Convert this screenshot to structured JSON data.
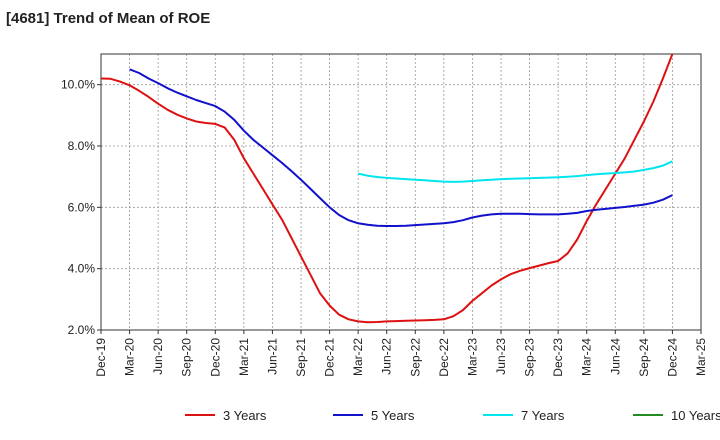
{
  "chart_data": {
    "type": "line",
    "title": "[4681]  Trend of Mean of ROE",
    "xlabel": "",
    "ylabel": "",
    "ylim": [
      2.0,
      11.0
    ],
    "grid": true,
    "legend_position": "bottom",
    "x_ticks": [
      "Dec-19",
      "Mar-20",
      "Jun-20",
      "Sep-20",
      "Dec-20",
      "Mar-21",
      "Jun-21",
      "Sep-21",
      "Dec-21",
      "Mar-22",
      "Jun-22",
      "Sep-22",
      "Dec-22",
      "Mar-23",
      "Jun-23",
      "Sep-23",
      "Dec-23",
      "Mar-24",
      "Jun-24",
      "Sep-24",
      "Dec-24",
      "Mar-25"
    ],
    "y_ticks": [
      {
        "value": 2.0,
        "label": "2.0%"
      },
      {
        "value": 4.0,
        "label": "4.0%"
      },
      {
        "value": 6.0,
        "label": "6.0%"
      },
      {
        "value": 8.0,
        "label": "8.0%"
      },
      {
        "value": 10.0,
        "label": "10.0%"
      }
    ],
    "series": [
      {
        "name": "3 Years",
        "color": "#dd1111",
        "points": [
          [
            "Dec-19",
            10.2
          ],
          [
            "Jan-20",
            10.19
          ],
          [
            "Feb-20",
            10.1
          ],
          [
            "Mar-20",
            9.98
          ],
          [
            "Apr-20",
            9.8
          ],
          [
            "May-20",
            9.6
          ],
          [
            "Jun-20",
            9.38
          ],
          [
            "Jul-20",
            9.18
          ],
          [
            "Aug-20",
            9.02
          ],
          [
            "Sep-20",
            8.9
          ],
          [
            "Oct-20",
            8.8
          ],
          [
            "Nov-20",
            8.75
          ],
          [
            "Dec-20",
            8.72
          ],
          [
            "Jan-21",
            8.6
          ],
          [
            "Feb-21",
            8.2
          ],
          [
            "Mar-21",
            7.6
          ],
          [
            "Apr-21",
            7.1
          ],
          [
            "May-21",
            6.6
          ],
          [
            "Jun-21",
            6.1
          ],
          [
            "Jul-21",
            5.6
          ],
          [
            "Aug-21",
            5.0
          ],
          [
            "Sep-21",
            4.4
          ],
          [
            "Oct-21",
            3.8
          ],
          [
            "Nov-21",
            3.2
          ],
          [
            "Dec-21",
            2.8
          ],
          [
            "Jan-22",
            2.5
          ],
          [
            "Feb-22",
            2.35
          ],
          [
            "Mar-22",
            2.28
          ],
          [
            "Apr-22",
            2.25
          ],
          [
            "May-22",
            2.26
          ],
          [
            "Jun-22",
            2.28
          ],
          [
            "Jul-22",
            2.29
          ],
          [
            "Aug-22",
            2.3
          ],
          [
            "Sep-22",
            2.31
          ],
          [
            "Oct-22",
            2.32
          ],
          [
            "Nov-22",
            2.33
          ],
          [
            "Dec-22",
            2.35
          ],
          [
            "Jan-23",
            2.45
          ],
          [
            "Feb-23",
            2.65
          ],
          [
            "Mar-23",
            2.95
          ],
          [
            "Apr-23",
            3.2
          ],
          [
            "May-23",
            3.45
          ],
          [
            "Jun-23",
            3.65
          ],
          [
            "Jul-23",
            3.82
          ],
          [
            "Aug-23",
            3.93
          ],
          [
            "Sep-23",
            4.02
          ],
          [
            "Oct-23",
            4.1
          ],
          [
            "Nov-23",
            4.18
          ],
          [
            "Dec-23",
            4.25
          ],
          [
            "Jan-24",
            4.5
          ],
          [
            "Feb-24",
            4.95
          ],
          [
            "Mar-24",
            5.55
          ],
          [
            "Apr-24",
            6.1
          ],
          [
            "May-24",
            6.6
          ],
          [
            "Jun-24",
            7.1
          ],
          [
            "Jul-24",
            7.6
          ],
          [
            "Aug-24",
            8.2
          ],
          [
            "Sep-24",
            8.8
          ],
          [
            "Oct-24",
            9.45
          ],
          [
            "Nov-24",
            10.2
          ],
          [
            "Dec-24",
            11.0
          ]
        ]
      },
      {
        "name": "5 Years",
        "color": "#1111cc",
        "points": [
          [
            "Mar-20",
            10.5
          ],
          [
            "Apr-20",
            10.38
          ],
          [
            "May-20",
            10.2
          ],
          [
            "Jun-20",
            10.05
          ],
          [
            "Jul-20",
            9.88
          ],
          [
            "Aug-20",
            9.74
          ],
          [
            "Sep-20",
            9.62
          ],
          [
            "Oct-20",
            9.5
          ],
          [
            "Nov-20",
            9.4
          ],
          [
            "Dec-20",
            9.3
          ],
          [
            "Jan-21",
            9.12
          ],
          [
            "Feb-21",
            8.85
          ],
          [
            "Mar-21",
            8.5
          ],
          [
            "Apr-21",
            8.2
          ],
          [
            "May-21",
            7.95
          ],
          [
            "Jun-21",
            7.7
          ],
          [
            "Jul-21",
            7.45
          ],
          [
            "Aug-21",
            7.18
          ],
          [
            "Sep-21",
            6.9
          ],
          [
            "Oct-21",
            6.6
          ],
          [
            "Nov-21",
            6.3
          ],
          [
            "Dec-21",
            6.0
          ],
          [
            "Jan-22",
            5.75
          ],
          [
            "Feb-22",
            5.58
          ],
          [
            "Mar-22",
            5.48
          ],
          [
            "Apr-22",
            5.43
          ],
          [
            "May-22",
            5.4
          ],
          [
            "Jun-22",
            5.39
          ],
          [
            "Jul-22",
            5.39
          ],
          [
            "Aug-22",
            5.4
          ],
          [
            "Sep-22",
            5.42
          ],
          [
            "Oct-22",
            5.44
          ],
          [
            "Nov-22",
            5.46
          ],
          [
            "Dec-22",
            5.48
          ],
          [
            "Jan-23",
            5.52
          ],
          [
            "Feb-23",
            5.58
          ],
          [
            "Mar-23",
            5.67
          ],
          [
            "Apr-23",
            5.73
          ],
          [
            "May-23",
            5.77
          ],
          [
            "Jun-23",
            5.79
          ],
          [
            "Jul-23",
            5.79
          ],
          [
            "Aug-23",
            5.79
          ],
          [
            "Sep-23",
            5.78
          ],
          [
            "Oct-23",
            5.77
          ],
          [
            "Nov-23",
            5.77
          ],
          [
            "Dec-23",
            5.77
          ],
          [
            "Jan-24",
            5.79
          ],
          [
            "Feb-24",
            5.82
          ],
          [
            "Mar-24",
            5.88
          ],
          [
            "Apr-24",
            5.92
          ],
          [
            "May-24",
            5.95
          ],
          [
            "Jun-24",
            5.98
          ],
          [
            "Jul-24",
            6.01
          ],
          [
            "Aug-24",
            6.05
          ],
          [
            "Sep-24",
            6.09
          ],
          [
            "Oct-24",
            6.15
          ],
          [
            "Nov-24",
            6.25
          ],
          [
            "Dec-24",
            6.4
          ]
        ]
      },
      {
        "name": "7 Years",
        "color": "#00e5ee",
        "points": [
          [
            "Mar-22",
            7.1
          ],
          [
            "Apr-22",
            7.03
          ],
          [
            "May-22",
            6.99
          ],
          [
            "Jun-22",
            6.96
          ],
          [
            "Jul-22",
            6.94
          ],
          [
            "Aug-22",
            6.92
          ],
          [
            "Sep-22",
            6.9
          ],
          [
            "Oct-22",
            6.88
          ],
          [
            "Nov-22",
            6.86
          ],
          [
            "Dec-22",
            6.84
          ],
          [
            "Jan-23",
            6.83
          ],
          [
            "Feb-23",
            6.84
          ],
          [
            "Mar-23",
            6.86
          ],
          [
            "Apr-23",
            6.88
          ],
          [
            "May-23",
            6.9
          ],
          [
            "Jun-23",
            6.92
          ],
          [
            "Jul-23",
            6.93
          ],
          [
            "Aug-23",
            6.94
          ],
          [
            "Sep-23",
            6.95
          ],
          [
            "Oct-23",
            6.96
          ],
          [
            "Nov-23",
            6.97
          ],
          [
            "Dec-23",
            6.98
          ],
          [
            "Jan-24",
            7.0
          ],
          [
            "Feb-24",
            7.02
          ],
          [
            "Mar-24",
            7.05
          ],
          [
            "Apr-24",
            7.08
          ],
          [
            "May-24",
            7.1
          ],
          [
            "Jun-24",
            7.12
          ],
          [
            "Jul-24",
            7.14
          ],
          [
            "Aug-24",
            7.17
          ],
          [
            "Sep-24",
            7.22
          ],
          [
            "Oct-24",
            7.28
          ],
          [
            "Nov-24",
            7.36
          ],
          [
            "Dec-24",
            7.5
          ]
        ]
      },
      {
        "name": "10 Years",
        "color": "#228b22",
        "points": []
      }
    ]
  }
}
